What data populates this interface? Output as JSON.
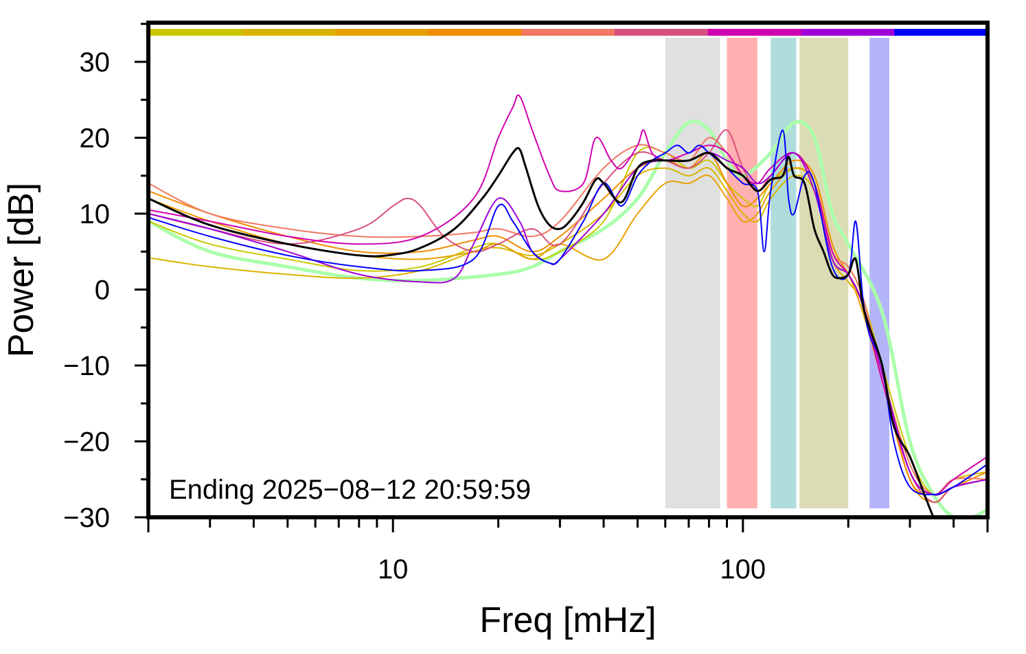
{
  "chart_data": {
    "type": "line",
    "xlabel": "Freq [mHz]",
    "ylabel": "Power [dB]",
    "x_scale": "log",
    "xlim": [
      2,
      500
    ],
    "ylim": [
      -30,
      35
    ],
    "x_ticks": [
      10,
      100
    ],
    "x_tick_labels": [
      "10",
      "100"
    ],
    "y_ticks": [
      -30,
      -20,
      -10,
      0,
      10,
      20,
      30
    ],
    "y_tick_labels": [
      "−30",
      "−20",
      "−10",
      "0",
      "10",
      "20",
      "30"
    ],
    "annotation": "Ending 2025−08−12 20:59:59",
    "grid": false,
    "legend": "none",
    "time_color_bar": [
      "#c8c800",
      "#d8b400",
      "#e8a000",
      "#f08c00",
      "#f07860",
      "#d85080",
      "#d000b0",
      "#a000d8",
      "#0000ff"
    ],
    "bands": [
      {
        "x0": 60,
        "x1": 86,
        "color": "#e0e0e0"
      },
      {
        "x0": 90,
        "x1": 110,
        "color": "#ffb0b0"
      },
      {
        "x0": 120,
        "x1": 142,
        "color": "#b0dcdc"
      },
      {
        "x0": 145,
        "x1": 200,
        "color": "#dcdcb4"
      },
      {
        "x0": 230,
        "x1": 262,
        "color": "#b4b4f8"
      }
    ],
    "series": [
      {
        "color": "#aaffaa",
        "width": 5,
        "x": [
          2,
          3,
          5,
          8,
          12,
          20,
          25,
          30,
          40,
          50,
          60,
          70,
          80,
          90,
          100,
          120,
          140,
          160,
          180,
          200,
          250,
          300,
          350,
          400,
          450,
          500
        ],
        "y": [
          9,
          5,
          3,
          1.5,
          1.2,
          2,
          3,
          5,
          8,
          12,
          18,
          22,
          21,
          17,
          15,
          18,
          22,
          20,
          10,
          6,
          -3,
          -20,
          -27,
          -30,
          -30,
          -29
        ]
      },
      {
        "color": "#c8c800",
        "width": 2,
        "x": [
          2,
          3,
          5,
          8,
          12,
          17,
          20,
          25,
          30,
          40,
          50,
          60,
          70,
          80,
          90,
          100,
          110,
          120,
          140,
          160,
          180,
          200,
          220,
          250,
          300,
          350,
          400,
          500
        ],
        "y": [
          9,
          6,
          4,
          2.5,
          3,
          5.5,
          6,
          4,
          5,
          9,
          18,
          18,
          16,
          17,
          14,
          12,
          11,
          14,
          16,
          14,
          5,
          3,
          -1,
          -10,
          -22,
          -27,
          -25,
          -24
        ]
      },
      {
        "color": "#d8b400",
        "width": 2,
        "x": [
          2,
          3,
          5,
          8,
          12,
          17,
          20,
          25,
          30,
          40,
          50,
          60,
          70,
          80,
          90,
          100,
          110,
          120,
          140,
          160,
          180,
          200,
          220,
          250,
          300,
          350,
          400,
          500
        ],
        "y": [
          4.2,
          3,
          2,
          1.5,
          2.5,
          5,
          5.5,
          4.5,
          6,
          10,
          15,
          16,
          15,
          16,
          13,
          10,
          9,
          12,
          15,
          13,
          4,
          1,
          -2,
          -12,
          -24,
          -27,
          -25,
          -24
        ]
      },
      {
        "color": "#e8a000",
        "width": 2,
        "x": [
          2,
          3,
          5,
          8,
          12,
          17,
          20,
          25,
          30,
          40,
          50,
          60,
          70,
          80,
          90,
          100,
          110,
          120,
          140,
          160,
          180,
          200,
          220,
          250,
          300,
          350,
          400,
          500
        ],
        "y": [
          12,
          9,
          6,
          4.5,
          4,
          5,
          6,
          4,
          6,
          4,
          10,
          14,
          14,
          15,
          12,
          9,
          10,
          13,
          16,
          14,
          5,
          2,
          -3,
          -12,
          -25,
          -28,
          -26,
          -25
        ]
      },
      {
        "color": "#f08c00",
        "width": 2,
        "x": [
          2,
          3,
          5,
          8,
          12,
          17,
          20,
          25,
          30,
          40,
          50,
          60,
          70,
          80,
          90,
          100,
          110,
          120,
          140,
          160,
          180,
          200,
          220,
          250,
          300,
          350,
          400,
          500
        ],
        "y": [
          13,
          10,
          7,
          5,
          5,
          6.5,
          7,
          5,
          7,
          12,
          16,
          17,
          16,
          18,
          14,
          11,
          12,
          14,
          17,
          15,
          6,
          2,
          -2,
          -12,
          -25,
          -27,
          -26,
          -24
        ]
      },
      {
        "color": "#f07860",
        "width": 2,
        "x": [
          2,
          3,
          5,
          8,
          12,
          17,
          20,
          25,
          30,
          40,
          50,
          60,
          70,
          80,
          90,
          100,
          110,
          120,
          140,
          160,
          180,
          200,
          220,
          250,
          300,
          350,
          400,
          500
        ],
        "y": [
          14,
          10,
          8,
          7,
          7,
          7.5,
          8,
          7,
          9,
          16,
          19,
          18,
          17,
          20,
          18,
          15,
          13,
          15,
          18,
          14,
          5,
          3,
          -1,
          -11,
          -23,
          -27,
          -25,
          -25
        ]
      },
      {
        "color": "#d85080",
        "width": 2,
        "x": [
          2,
          3,
          5,
          8,
          10,
          11,
          12,
          14,
          17,
          20,
          25,
          30,
          40,
          50,
          60,
          70,
          80,
          90,
          100,
          110,
          120,
          140,
          160,
          180,
          200,
          220,
          250,
          300,
          350,
          400,
          500
        ],
        "y": [
          10,
          8,
          6,
          8,
          11,
          12,
          11,
          7,
          5,
          6,
          8,
          6,
          14,
          18,
          17,
          16,
          18,
          21,
          16,
          13,
          15,
          18,
          14,
          4,
          2,
          -2,
          -12,
          -24,
          -28,
          -26,
          -25
        ]
      },
      {
        "color": "#d000b0",
        "width": 2,
        "x": [
          2,
          3,
          5,
          8,
          12,
          17,
          20,
          22,
          23,
          25,
          28,
          30,
          35,
          38,
          42,
          45,
          50,
          52,
          55,
          60,
          70,
          80,
          90,
          100,
          110,
          120,
          140,
          160,
          180,
          200,
          220,
          250,
          300,
          350,
          400,
          500
        ],
        "y": [
          10.5,
          9,
          7,
          6,
          7,
          12,
          20,
          24,
          25.5,
          21,
          15,
          13,
          14,
          20,
          17,
          16,
          19,
          21,
          18,
          17,
          18,
          19,
          18,
          15,
          14,
          16,
          18,
          14,
          5,
          2,
          -2,
          -12,
          -24,
          -27,
          -25,
          -22
        ]
      },
      {
        "color": "#a000d8",
        "width": 2,
        "x": [
          2,
          3,
          5,
          8,
          12,
          15,
          17,
          20,
          23,
          25,
          28,
          30,
          40,
          50,
          60,
          70,
          80,
          90,
          100,
          110,
          120,
          140,
          160,
          180,
          200,
          220,
          250,
          300,
          350,
          400,
          500
        ],
        "y": [
          10,
          8,
          5,
          2,
          1,
          1.5,
          6,
          12,
          9,
          5,
          3.5,
          4,
          10,
          16,
          17,
          17,
          18,
          17,
          16,
          14,
          15,
          18,
          13,
          4,
          2,
          -2,
          -11,
          -24,
          -27,
          -26,
          -25
        ]
      },
      {
        "color": "#0000ff",
        "width": 2,
        "x": [
          2,
          3,
          5,
          8,
          12,
          17,
          20,
          22,
          25,
          28,
          30,
          35,
          40,
          45,
          50,
          55,
          60,
          65,
          70,
          75,
          80,
          90,
          100,
          110,
          115,
          120,
          130,
          135,
          140,
          150,
          160,
          180,
          200,
          210,
          220,
          230,
          250,
          270,
          300,
          350,
          400,
          500
        ],
        "y": [
          9.5,
          7,
          4.5,
          3,
          2.5,
          4,
          11,
          9,
          5,
          3.5,
          4,
          9,
          14,
          11,
          15,
          17,
          18,
          19,
          18,
          19,
          18,
          16,
          14,
          13,
          5,
          13,
          21,
          12,
          10,
          15,
          14,
          3,
          2,
          9,
          -1,
          -6,
          -10,
          -20,
          -26,
          -27,
          -26,
          -23
        ]
      },
      {
        "color": "#000000",
        "width": 3,
        "x": [
          2,
          3,
          5,
          8,
          10,
          12,
          15,
          18,
          20,
          22,
          23,
          24,
          26,
          28,
          30,
          32,
          35,
          38,
          40,
          45,
          50,
          55,
          60,
          70,
          80,
          90,
          100,
          110,
          120,
          130,
          135,
          140,
          150,
          160,
          170,
          180,
          190,
          200,
          210,
          220,
          230,
          250,
          270,
          300,
          330,
          350
        ],
        "y": [
          12,
          8.5,
          6,
          4.5,
          4.6,
          5.5,
          8,
          12,
          15,
          18,
          18.5,
          16,
          11,
          8.5,
          8,
          9,
          11.5,
          14.5,
          14,
          11.5,
          16,
          17,
          17,
          17,
          18,
          16,
          15,
          13,
          14.5,
          15,
          17.5,
          15,
          14,
          8,
          5,
          2,
          1.5,
          2,
          4,
          -2,
          -5,
          -10,
          -18,
          -22,
          -27,
          -30
        ]
      }
    ]
  }
}
